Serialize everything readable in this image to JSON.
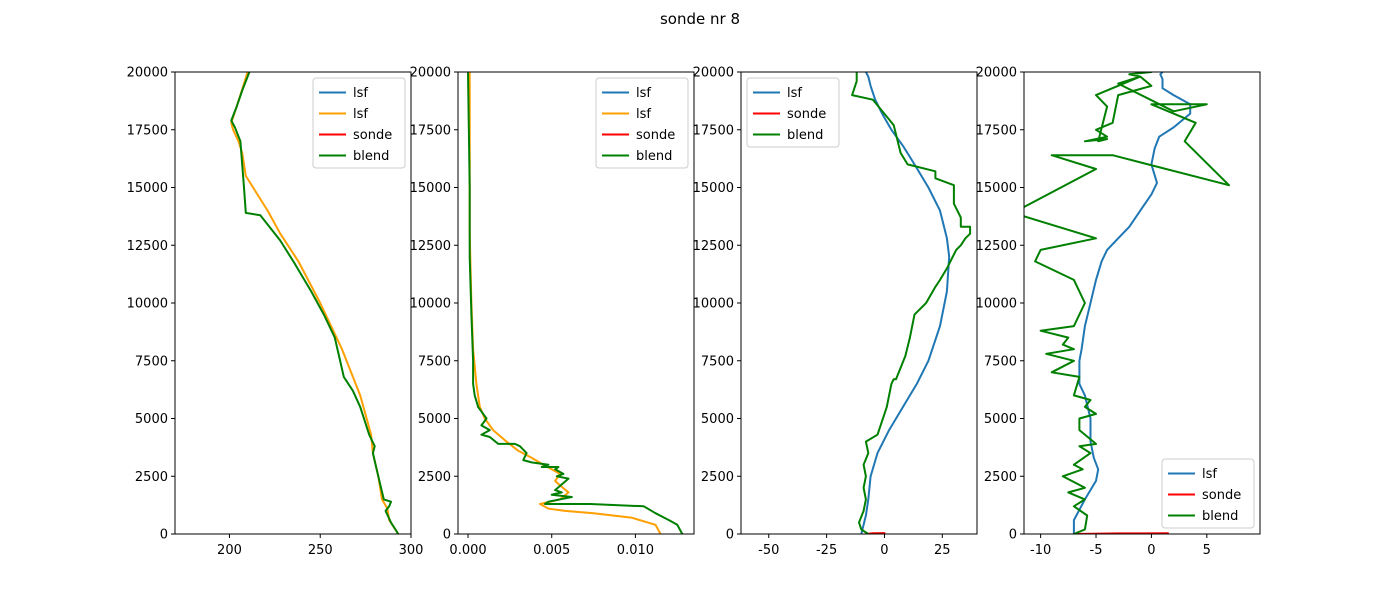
{
  "chart_data": {
    "suptitle": "sonde nr 8",
    "colors": {
      "lsf_blue": "#1f77b4",
      "lsf_orange": "#ff9f00",
      "sonde": "#ff0000",
      "blend": "#008000"
    },
    "panels": [
      {
        "type": "line",
        "xlim": [
          170,
          300
        ],
        "ylim": [
          0,
          20000
        ],
        "xticks": [
          200,
          250,
          300
        ],
        "yticks": [
          0,
          2500,
          5000,
          7500,
          10000,
          12500,
          15000,
          17500,
          20000
        ],
        "grid": false,
        "legend_loc": "upper right",
        "legend": [
          "lsf",
          "lsf",
          "sonde",
          "blend"
        ],
        "series": [
          {
            "name": "lsf",
            "color": "#1f77b4",
            "x": [],
            "y": []
          },
          {
            "name": "lsf",
            "color": "#ff9f00",
            "x": [
              293,
              288,
              287,
              284,
              282,
              279,
              278,
              272,
              262,
              250,
              238,
              228,
              221,
              209,
              207,
              205,
              202,
              201,
              206,
              210
            ],
            "y": [
              0,
              600,
              1100,
              1500,
              2500,
              3500,
              4300,
              6000,
              8000,
              10000,
              11800,
              13000,
              14000,
              15500,
              16500,
              17000,
              17500,
              17800,
              19000,
              20000
            ]
          },
          {
            "name": "sonde",
            "color": "#ff0000",
            "x": [],
            "y": []
          },
          {
            "name": "blend",
            "color": "#008000",
            "x": [
              293,
              289,
              286,
              288,
              289,
              285,
              282,
              279,
              280,
              277,
              272,
              268,
              263,
              258,
              252,
              245,
              236,
              228,
              222,
              217,
              209,
              208,
              207,
              206,
              203,
              201,
              204,
              207,
              211
            ],
            "y": [
              0,
              500,
              1000,
              1200,
              1400,
              1500,
              2500,
              3500,
              3800,
              4300,
              5500,
              6200,
              6800,
              8500,
              9500,
              10500,
              11700,
              12700,
              13300,
              13800,
              13900,
              15000,
              16000,
              17000,
              17600,
              17900,
              18500,
              19200,
              20000
            ]
          }
        ]
      },
      {
        "type": "line",
        "xlim": [
          -0.0006,
          0.0135
        ],
        "ylim": [
          0,
          20000
        ],
        "xticks": [
          0.0,
          0.005,
          0.01
        ],
        "xtick_labels": [
          "0.000",
          "0.005",
          "0.010"
        ],
        "yticks": [
          0,
          2500,
          5000,
          7500,
          10000,
          12500,
          15000,
          17500,
          20000
        ],
        "grid": false,
        "legend_loc": "upper right",
        "legend": [
          "lsf",
          "lsf",
          "sonde",
          "blend"
        ],
        "series": [
          {
            "name": "lsf",
            "color": "#1f77b4",
            "x": [],
            "y": []
          },
          {
            "name": "lsf",
            "color": "#ff9f00",
            "x": [
              0.0115,
              0.0112,
              0.0098,
              0.0075,
              0.0058,
              0.0048,
              0.0043,
              0.0055,
              0.006,
              0.0055,
              0.0052,
              0.0055,
              0.0045,
              0.0038,
              0.003,
              0.0023,
              0.0015,
              0.001,
              0.0007,
              0.0005,
              0.0003,
              0.0002,
              0.0001,
              0.0001
            ],
            "y": [
              0,
              400,
              700,
              900,
              1000,
              1100,
              1300,
              1500,
              1800,
              2100,
              2300,
              2600,
              3000,
              3300,
              3600,
              4000,
              4500,
              5000,
              5500,
              6500,
              8000,
              10000,
              13000,
              20000
            ]
          },
          {
            "name": "sonde",
            "color": "#ff0000",
            "x": [],
            "y": []
          },
          {
            "name": "blend",
            "color": "#008000",
            "x": [
              0.0128,
              0.0125,
              0.012,
              0.0112,
              0.0105,
              0.0073,
              0.0046,
              0.0048,
              0.0062,
              0.005,
              0.0056,
              0.0052,
              0.006,
              0.0053,
              0.0057,
              0.0052,
              0.0054,
              0.0044,
              0.0048,
              0.0038,
              0.0033,
              0.0035,
              0.0031,
              0.0028,
              0.0018,
              0.0013,
              0.0008,
              0.0013,
              0.0008,
              0.0011,
              0.0006,
              0.0004,
              0.0003,
              0.0003,
              0.0002,
              0.0001,
              0.0001,
              0.0
            ],
            "y": [
              0,
              400,
              600,
              900,
              1200,
              1300,
              1300,
              1400,
              1600,
              1700,
              1800,
              1900,
              2400,
              2500,
              2600,
              2800,
              2900,
              2900,
              3000,
              3100,
              3200,
              3500,
              3800,
              3900,
              3900,
              4200,
              4300,
              4500,
              4700,
              5000,
              5500,
              6000,
              6500,
              7500,
              9500,
              12000,
              15000,
              20000
            ]
          }
        ]
      },
      {
        "type": "line",
        "xlim": [
          -62,
          40
        ],
        "ylim": [
          0,
          20000
        ],
        "xticks": [
          -50,
          -25,
          0,
          25
        ],
        "yticks": [
          0,
          2500,
          5000,
          7500,
          10000,
          12500,
          15000,
          17500,
          20000
        ],
        "grid": false,
        "legend_loc": "upper left",
        "legend": [
          "lsf",
          "sonde",
          "blend"
        ],
        "series": [
          {
            "name": "lsf",
            "color": "#1f77b4",
            "x": [
              -10,
              -8,
              -7,
              -6,
              -3,
              2,
              8,
              14,
              19,
              24,
              27,
              28,
              27,
              24,
              19,
              13,
              8,
              3,
              -1,
              -4,
              -6,
              -7,
              -8
            ],
            "y": [
              0,
              800,
              1500,
              2500,
              3500,
              4500,
              5500,
              6500,
              7500,
              9000,
              10500,
              12000,
              12800,
              14000,
              15000,
              16000,
              16800,
              17500,
              18200,
              18800,
              19400,
              19800,
              20000
            ]
          },
          {
            "name": "sonde",
            "color": "#ff0000",
            "x": [
              -8,
              -5,
              0
            ],
            "y": [
              0,
              30,
              40
            ]
          },
          {
            "name": "blend",
            "color": "#008000",
            "x": [
              -7,
              -10,
              -11,
              -9,
              -8,
              -9,
              -8,
              -9,
              -7,
              -8,
              -3,
              1,
              3,
              4,
              5,
              9,
              11,
              13,
              18,
              22,
              24,
              27,
              31,
              33,
              35,
              37,
              37,
              33,
              33,
              30,
              30,
              22,
              22,
              10,
              7,
              4,
              -5,
              -14,
              -12,
              -12
            ],
            "y": [
              0,
              200,
              500,
              1000,
              1500,
              2000,
              2500,
              3000,
              3500,
              4000,
              4300,
              5500,
              6500,
              6700,
              6700,
              7700,
              8500,
              9500,
              10000,
              10700,
              11000,
              11500,
              12300,
              12500,
              12800,
              13000,
              13300,
              13300,
              13700,
              14300,
              15100,
              15400,
              15700,
              16000,
              16500,
              17700,
              18800,
              19000,
              19600,
              20000
            ]
          }
        ]
      },
      {
        "type": "line",
        "xlim": [
          -11.5,
          9.8
        ],
        "ylim": [
          0,
          20000
        ],
        "xticks": [
          -10,
          -5,
          0,
          5
        ],
        "yticks": [
          0,
          2500,
          5000,
          7500,
          10000,
          12500,
          15000,
          17500,
          20000
        ],
        "grid": false,
        "legend_loc": "lower right",
        "legend": [
          "lsf",
          "sonde",
          "blend"
        ],
        "series": [
          {
            "name": "lsf",
            "color": "#1f77b4",
            "x": [
              -7,
              -7,
              -6,
              -5,
              -4.8,
              -5.2,
              -5.5,
              -5.5,
              -6,
              -6.5,
              -6.5,
              -6.3,
              -6,
              -5.5,
              -5,
              -4.5,
              -4,
              -3,
              -2,
              -1,
              0,
              0.5,
              0,
              0.3,
              0.7,
              2,
              3.5,
              3.5,
              2,
              1,
              1,
              0.8,
              1
            ],
            "y": [
              0,
              600,
              1500,
              2300,
              2800,
              3300,
              4000,
              5000,
              6000,
              6500,
              7500,
              8000,
              9000,
              10000,
              11000,
              11800,
              12300,
              12800,
              13300,
              14000,
              14700,
              15200,
              16000,
              16700,
              17200,
              17600,
              18200,
              18600,
              19000,
              19300,
              19700,
              19900,
              20000
            ]
          },
          {
            "name": "sonde",
            "color": "#ff0000",
            "x": [
              -7,
              -3,
              1.5
            ],
            "y": [
              0,
              25,
              30
            ]
          },
          {
            "name": "blend",
            "color": "#008000",
            "x": [
              -7,
              -6,
              -5.8,
              -7,
              -6,
              -7.5,
              -6,
              -8,
              -6.2,
              -7,
              -5.5,
              -6.5,
              -5,
              -6.5,
              -6.5,
              -5,
              -6,
              -5.5,
              -7,
              -6.5,
              -9,
              -7,
              -9.5,
              -7,
              -8,
              -7.5,
              -10,
              -7,
              -6,
              -7,
              -10.5,
              -10,
              -5,
              -12.5,
              -5,
              -9,
              -3.5,
              7,
              3,
              4,
              0,
              5,
              2,
              -3,
              -1,
              -5,
              -4,
              -4.8,
              -4,
              -6,
              -4,
              -5,
              -3.5,
              -3,
              0,
              -1,
              -2,
              0
            ],
            "y": [
              0,
              200,
              800,
              1200,
              1500,
              1800,
              2000,
              2500,
              2800,
              3000,
              3500,
              3800,
              3900,
              4500,
              5000,
              5200,
              5500,
              5800,
              6000,
              6800,
              7000,
              7500,
              7800,
              8000,
              8200,
              8500,
              8800,
              9000,
              10000,
              11000,
              11800,
              12300,
              12800,
              13900,
              15800,
              16400,
              16400,
              15100,
              17000,
              17800,
              18600,
              18600,
              18300,
              19500,
              19800,
              19000,
              18500,
              17000,
              17100,
              17000,
              17200,
              17500,
              17800,
              19000,
              19400,
              19800,
              19900,
              20000
            ]
          }
        ]
      }
    ]
  }
}
